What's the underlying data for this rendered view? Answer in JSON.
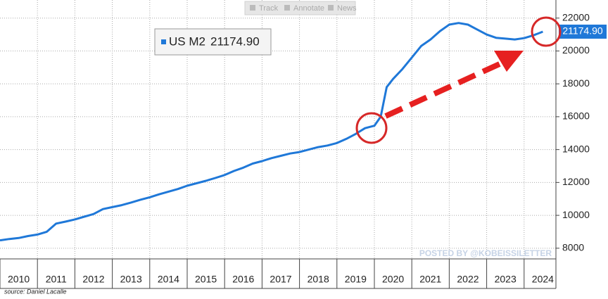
{
  "chart_data": {
    "type": "line",
    "toolbar": [
      "Track",
      "Annotate",
      "News"
    ],
    "watermark": "POSTED BY @KOBEISSILETTER",
    "source": "source: Daniel Lacalle",
    "x": [
      2010.0,
      2010.25,
      2010.5,
      2010.75,
      2011.0,
      2011.25,
      2011.5,
      2011.75,
      2012.0,
      2012.25,
      2012.5,
      2012.75,
      2013.0,
      2013.25,
      2013.5,
      2013.75,
      2014.0,
      2014.25,
      2014.5,
      2014.75,
      2015.0,
      2015.25,
      2015.5,
      2015.75,
      2016.0,
      2016.25,
      2016.5,
      2016.75,
      2017.0,
      2017.25,
      2017.5,
      2017.75,
      2018.0,
      2018.25,
      2018.5,
      2018.75,
      2019.0,
      2019.25,
      2019.5,
      2019.75,
      2020.0,
      2020.17,
      2020.33,
      2020.5,
      2020.75,
      2021.0,
      2021.25,
      2021.5,
      2021.75,
      2022.0,
      2022.25,
      2022.5,
      2022.75,
      2023.0,
      2023.25,
      2023.5,
      2023.75,
      2024.0,
      2024.25,
      2024.5
    ],
    "series": [
      {
        "name": "US M2",
        "color": "#1f78d8",
        "values": [
          8480,
          8560,
          8620,
          8740,
          8830,
          9000,
          9500,
          9620,
          9750,
          9920,
          10080,
          10380,
          10500,
          10620,
          10780,
          10950,
          11100,
          11280,
          11440,
          11600,
          11800,
          11950,
          12100,
          12270,
          12450,
          12700,
          12900,
          13150,
          13300,
          13480,
          13620,
          13760,
          13850,
          14000,
          14150,
          14250,
          14400,
          14650,
          14950,
          15300,
          15450,
          16000,
          17800,
          18300,
          18900,
          19600,
          20300,
          20700,
          21200,
          21600,
          21700,
          21600,
          21300,
          21000,
          20800,
          20750,
          20700,
          20780,
          20950,
          21174.9
        ],
        "value_labels": [
          null,
          null,
          null,
          null,
          null,
          null,
          null,
          null,
          null,
          null,
          null,
          null,
          null,
          null,
          null,
          null,
          null,
          null,
          null,
          null,
          null,
          null,
          null,
          null,
          null,
          null,
          null,
          null,
          null,
          null,
          null,
          null,
          null,
          null,
          null,
          null,
          null,
          null,
          null,
          null,
          null,
          null,
          null,
          null,
          null,
          null,
          null,
          null,
          null,
          null,
          null,
          null,
          null,
          null,
          null,
          null,
          null,
          null,
          null,
          "21174.90"
        ]
      }
    ],
    "xlim": [
      2010,
      2024.85
    ],
    "xticks": [
      2010,
      2011,
      2012,
      2013,
      2014,
      2015,
      2016,
      2017,
      2018,
      2019,
      2020,
      2021,
      2022,
      2023,
      2024
    ],
    "ylim": [
      7350,
      23100
    ],
    "yticks": [
      8000,
      10000,
      12000,
      14000,
      16000,
      18000,
      20000,
      22000
    ],
    "grid": true
  }
}
